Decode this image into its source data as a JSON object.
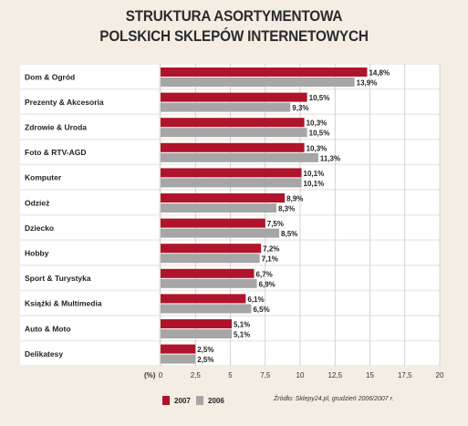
{
  "chart_data": {
    "type": "bar",
    "orientation": "horizontal",
    "title_line1": "STRUKTURA ASORTYMENTOWA",
    "title_line2": "POLSKICH SKLEPÓW INTERNETOWYCH",
    "categories": [
      "Dom & Ogród",
      "Prezenty & Akcesoria",
      "Zdrowie & Uroda",
      "Foto & RTV-AGD",
      "Komputer",
      "Odzież",
      "Dziecko",
      "Hobby",
      "Sport & Turystyka",
      "Książki & Multimedia",
      "Auto & Moto",
      "Delikatesy"
    ],
    "series": [
      {
        "name": "2007",
        "color": "#b0142a",
        "values": [
          14.8,
          10.5,
          10.3,
          10.3,
          10.1,
          8.9,
          7.5,
          7.2,
          6.7,
          6.1,
          5.1,
          2.5
        ],
        "labels": [
          "14,8%",
          "10,5%",
          "10,3%",
          "10,3%",
          "10,1%",
          "8,9%",
          "7,5%",
          "7,2%",
          "6,7%",
          "6,1%",
          "5,1%",
          "2,5%"
        ]
      },
      {
        "name": "2006",
        "color": "#a6a6a6",
        "values": [
          13.9,
          9.3,
          10.5,
          11.3,
          10.1,
          8.3,
          8.5,
          7.1,
          6.9,
          6.5,
          5.1,
          2.5
        ],
        "labels": [
          "13,9%",
          "9,3%",
          "10,5%",
          "11,3%",
          "10,1%",
          "8,3%",
          "8,5%",
          "7,1%",
          "6,9%",
          "6,5%",
          "5,1%",
          "2,5%"
        ]
      }
    ],
    "x_unit_label": "(%)",
    "xlim": [
      0,
      20
    ],
    "xticks": [
      0,
      2.5,
      5,
      7.5,
      10,
      12.5,
      15,
      17.5,
      20
    ],
    "xtick_labels": [
      "0",
      "2,5",
      "5",
      "7,5",
      "10",
      "12,5",
      "15",
      "17,5",
      "20"
    ],
    "grid": true,
    "legend_position": "bottom-left",
    "source": "Źródło: Sklepy24.pl, grudzień 2006/2007 r."
  }
}
